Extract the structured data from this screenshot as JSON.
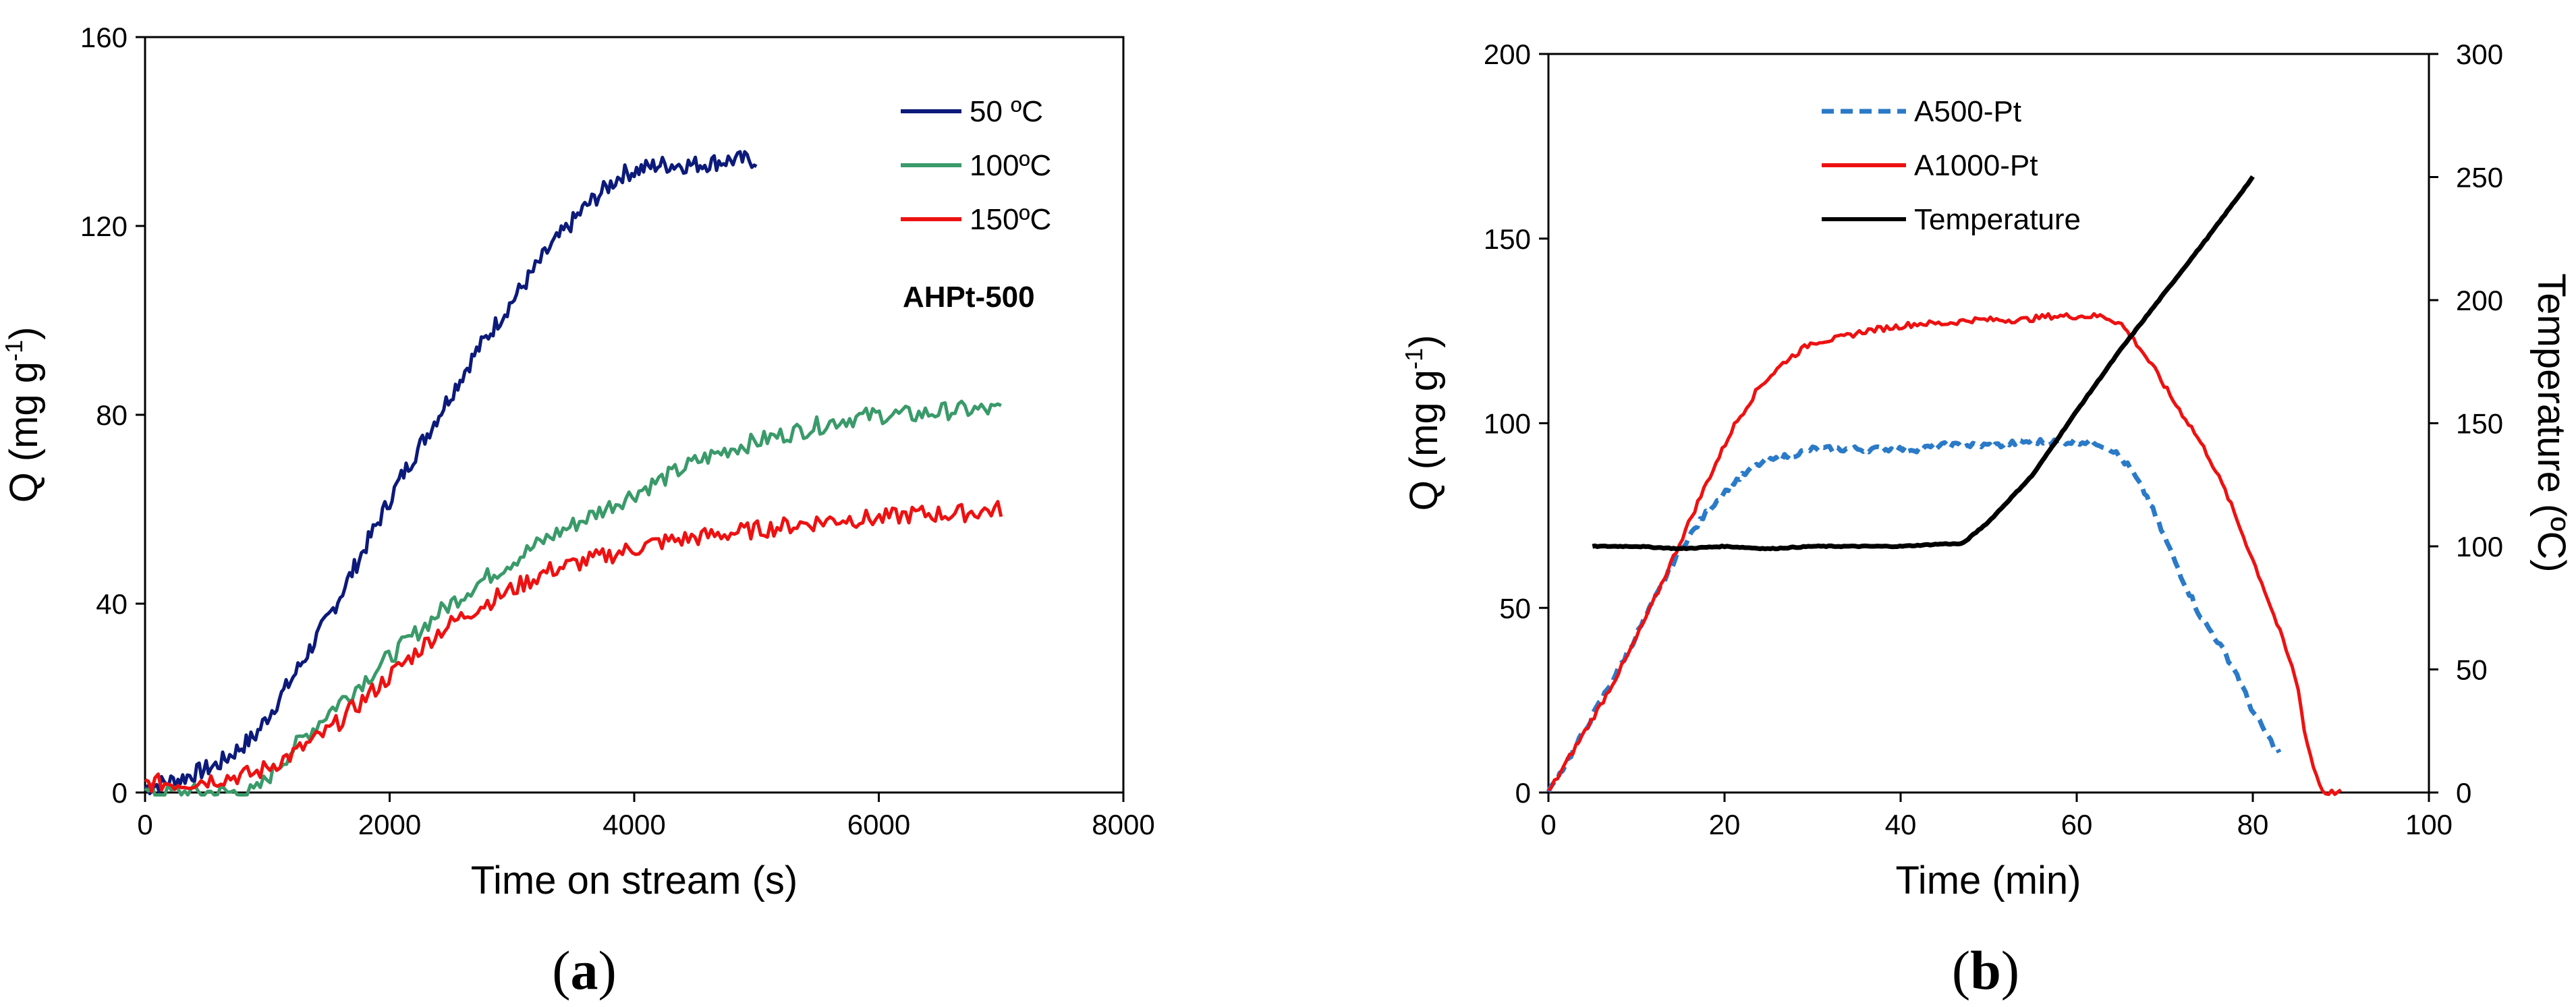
{
  "figure": {
    "panel_a": {
      "label_left": "(",
      "label_letter": "a",
      "label_right": ")"
    },
    "panel_b": {
      "label_left": "(",
      "label_letter": "b",
      "label_right": ")"
    }
  },
  "chart_data": [
    {
      "id": "a",
      "type": "line",
      "xlabel": "Time on stream (s)",
      "ylabel_main": "Q (mg g",
      "ylabel_sup": "-1",
      "ylabel_end": ")",
      "xlim": [
        0,
        8000
      ],
      "ylim": [
        0,
        160
      ],
      "xticks": [
        0,
        2000,
        4000,
        6000,
        8000
      ],
      "yticks": [
        0,
        40,
        80,
        120,
        160
      ],
      "legend_position": "top-right",
      "annotation": "AHPt-500",
      "series": [
        {
          "name": "50 ºC",
          "color": "#0c1a7a",
          "dash": "solid",
          "x": [
            0,
            300,
            600,
            900,
            1200,
            1500,
            1800,
            2100,
            2400,
            2700,
            3000,
            3300,
            3600,
            3900,
            4200,
            4500,
            4800,
            5000
          ],
          "y": [
            1,
            3,
            6,
            12,
            24,
            37,
            52,
            67,
            80,
            93,
            104,
            115,
            124,
            131,
            133,
            133,
            134,
            134
          ]
        },
        {
          "name": "100ºC",
          "color": "#3a9a6a",
          "dash": "solid",
          "x": [
            0,
            300,
            600,
            900,
            1200,
            1500,
            1800,
            2100,
            2400,
            2700,
            3000,
            3300,
            3600,
            3900,
            4200,
            4500,
            4800,
            5100,
            5400,
            5700,
            6000,
            6300,
            6600,
            7000
          ],
          "y": [
            0,
            0,
            0,
            0,
            9,
            17,
            24,
            31,
            38,
            44,
            49,
            54,
            58,
            62,
            66,
            70,
            73,
            75,
            77,
            79,
            80,
            80,
            81,
            81
          ]
        },
        {
          "name": "150ºC",
          "color": "#ee1111",
          "dash": "solid",
          "x": [
            0,
            300,
            600,
            900,
            1200,
            1500,
            1800,
            2100,
            2400,
            2700,
            3000,
            3300,
            3600,
            3900,
            4200,
            4500,
            4800,
            5100,
            5400,
            5700,
            6000,
            6300,
            6600,
            7000
          ],
          "y": [
            2,
            2,
            3,
            4,
            8,
            13,
            20,
            27,
            34,
            39,
            43,
            47,
            49,
            51,
            53,
            54,
            55,
            56,
            57,
            58,
            58,
            59,
            59,
            60
          ]
        }
      ]
    },
    {
      "id": "b",
      "type": "line",
      "xlabel": "Time (min)",
      "ylabel_main": "Q (mg g",
      "ylabel_sup": "-1",
      "ylabel_end": ")",
      "y2label": "Temperature (ºC)",
      "xlim": [
        0,
        100
      ],
      "ylim": [
        0,
        200
      ],
      "y2lim": [
        0,
        300
      ],
      "xticks": [
        0,
        20,
        40,
        60,
        80,
        100
      ],
      "yticks": [
        0,
        50,
        100,
        150,
        200
      ],
      "y2ticks": [
        0,
        50,
        100,
        150,
        200,
        250,
        300
      ],
      "legend_position": "top-left",
      "series": [
        {
          "name": "A500-Pt",
          "axis": "left",
          "color": "#2a7ac8",
          "dash": "dashed",
          "x": [
            0,
            3,
            6,
            9,
            12,
            15,
            18,
            21,
            24,
            27,
            30,
            33,
            36,
            39,
            42,
            45,
            48,
            51,
            54,
            57,
            60,
            62,
            64,
            66,
            68,
            70,
            72,
            74,
            76,
            78,
            80,
            82,
            83
          ],
          "y": [
            0,
            12,
            25,
            38,
            52,
            66,
            76,
            84,
            89,
            91,
            93,
            93,
            93,
            93,
            93,
            94,
            94,
            94,
            95,
            95,
            95,
            95,
            93,
            88,
            80,
            69,
            58,
            48,
            41,
            33,
            22,
            14,
            11
          ]
        },
        {
          "name": "A1000-Pt",
          "axis": "left",
          "color": "#ee1111",
          "dash": "solid",
          "x": [
            0,
            3,
            6,
            9,
            12,
            15,
            18,
            21,
            24,
            27,
            30,
            33,
            36,
            39,
            42,
            45,
            48,
            51,
            54,
            57,
            60,
            63,
            65,
            67,
            69,
            71,
            73,
            75,
            77,
            79,
            81,
            83,
            85,
            86,
            87,
            88,
            89,
            90
          ],
          "y": [
            0,
            12,
            24,
            37,
            52,
            68,
            84,
            99,
            110,
            117,
            122,
            123,
            125,
            126,
            127,
            127,
            128,
            128,
            128,
            129,
            129,
            129,
            127,
            121,
            114,
            106,
            99,
            91,
            81,
            69,
            57,
            44,
            30,
            15,
            6,
            0,
            0,
            0
          ]
        },
        {
          "name": "Temperature",
          "axis": "right",
          "color": "#000000",
          "dash": "solid",
          "x": [
            5,
            10,
            15,
            20,
            25,
            30,
            35,
            40,
            45,
            47,
            50,
            55,
            60,
            65,
            70,
            75,
            80
          ],
          "y": [
            100,
            100,
            99,
            100,
            99,
            100,
            100,
            100,
            101,
            101,
            110,
            129,
            155,
            180,
            203,
            226,
            250
          ]
        }
      ]
    }
  ]
}
